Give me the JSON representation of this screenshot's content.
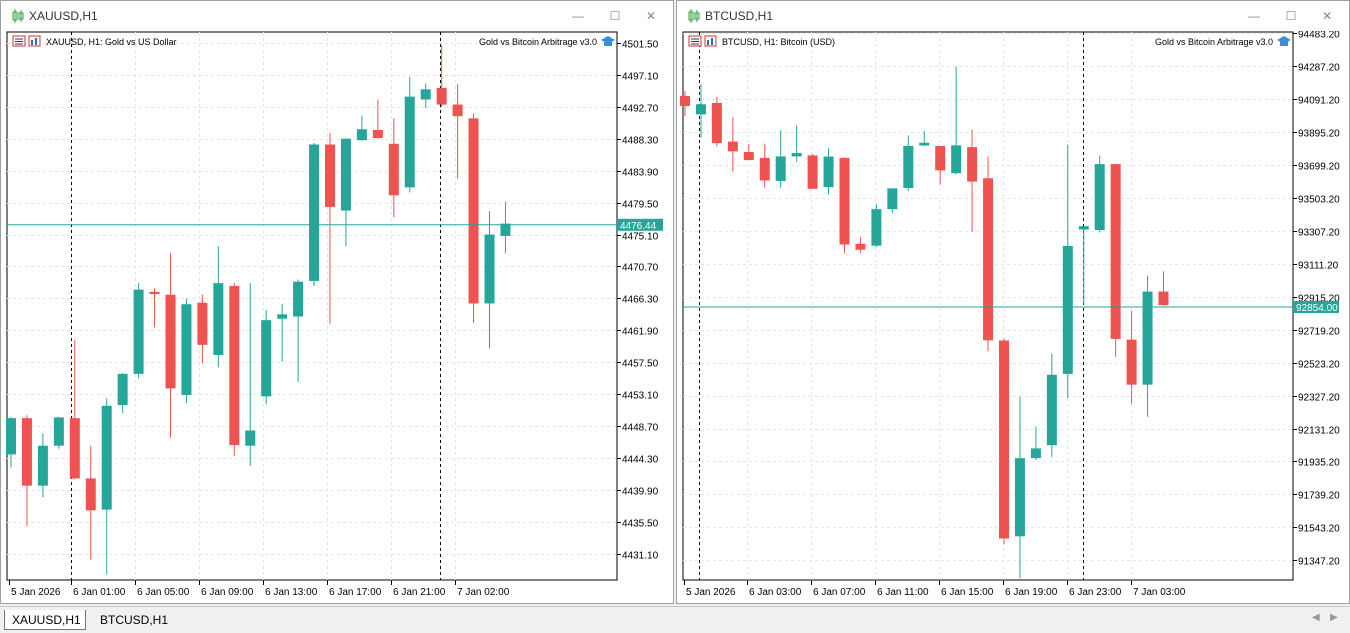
{
  "tabs": [
    {
      "label": "XAUUSD,H1",
      "active": true
    },
    {
      "label": "BTCUSD,H1",
      "active": false
    }
  ],
  "charts": [
    {
      "window_title": "XAUUSD,H1",
      "symbol_info": "XAUUSD, H1:  Gold vs US Dollar",
      "indicator": "Gold vs Bitcoin Arbitrage v3.0",
      "current_price": "4476.44",
      "price_labels": [
        "4501.50",
        "4497.10",
        "4492.70",
        "4488.30",
        "4483.90",
        "4479.50",
        "4475.10",
        "4470.70",
        "4466.30",
        "4461.90",
        "4457.50",
        "4453.10",
        "4448.70",
        "4444.30",
        "4439.90",
        "4435.50",
        "4431.10"
      ],
      "time_labels": [
        "5 Jan 2026",
        "6 Jan 01:00",
        "6 Jan 05:00",
        "6 Jan 09:00",
        "6 Jan 13:00",
        "6 Jan 17:00",
        "6 Jan 21:00",
        "7 Jan 02:00"
      ]
    },
    {
      "window_title": "BTCUSD,H1",
      "symbol_info": "BTCUSD, H1:  Bitcoin (USD)",
      "indicator": "Gold vs Bitcoin Arbitrage v3.0",
      "current_price": "92854.00",
      "price_labels": [
        "94483.20",
        "94287.20",
        "94091.20",
        "93895.20",
        "93699.20",
        "93503.20",
        "93307.20",
        "93111.20",
        "92915.20",
        "92719.20",
        "92523.20",
        "92327.20",
        "92131.20",
        "91935.20",
        "91739.20",
        "91543.20",
        "91347.20"
      ],
      "time_labels": [
        "5 Jan 2026",
        "6 Jan 03:00",
        "6 Jan 07:00",
        "6 Jan 11:00",
        "6 Jan 15:00",
        "6 Jan 19:00",
        "6 Jan 23:00",
        "7 Jan 03:00"
      ]
    }
  ],
  "chart_data": [
    {
      "type": "candlestick",
      "symbol": "XAUUSD",
      "timeframe": "H1",
      "ylim": [
        4427.5,
        4503.0
      ],
      "current_price": 4476.44,
      "bull_color": "#26a69a",
      "bear_color": "#ef5350",
      "candles": [
        {
          "o": 4444.8,
          "h": 4450.0,
          "l": 4443.0,
          "c": 4449.8
        },
        {
          "o": 4449.8,
          "h": 4450.2,
          "l": 4434.9,
          "c": 4440.5
        },
        {
          "o": 4440.5,
          "h": 4447.7,
          "l": 4438.9,
          "c": 4446.0
        },
        {
          "o": 4446.0,
          "h": 4450.0,
          "l": 4445.6,
          "c": 4449.9
        },
        {
          "o": 4449.8,
          "h": 4460.6,
          "l": 4441.4,
          "c": 4441.5
        },
        {
          "o": 4441.5,
          "h": 4446.0,
          "l": 4430.3,
          "c": 4437.1
        },
        {
          "o": 4437.2,
          "h": 4452.5,
          "l": 4428.3,
          "c": 4451.5
        },
        {
          "o": 4451.6,
          "h": 4456.0,
          "l": 4450.5,
          "c": 4455.9
        },
        {
          "o": 4455.9,
          "h": 4468.4,
          "l": 4455.3,
          "c": 4467.5
        },
        {
          "o": 4467.2,
          "h": 4467.7,
          "l": 4462.3,
          "c": 4466.9
        },
        {
          "o": 4466.8,
          "h": 4472.5,
          "l": 4447.1,
          "c": 4453.9
        },
        {
          "o": 4453.0,
          "h": 4466.3,
          "l": 4451.9,
          "c": 4465.5
        },
        {
          "o": 4465.7,
          "h": 4466.8,
          "l": 4457.4,
          "c": 4459.9
        },
        {
          "o": 4458.5,
          "h": 4473.5,
          "l": 4456.8,
          "c": 4468.4
        },
        {
          "o": 4468.0,
          "h": 4468.4,
          "l": 4444.6,
          "c": 4446.1
        },
        {
          "o": 4446.0,
          "h": 4468.4,
          "l": 4443.2,
          "c": 4448.1
        },
        {
          "o": 4452.8,
          "h": 4464.7,
          "l": 4451.7,
          "c": 4463.3
        },
        {
          "o": 4463.5,
          "h": 4465.5,
          "l": 4457.6,
          "c": 4464.1
        },
        {
          "o": 4463.8,
          "h": 4468.9,
          "l": 4454.8,
          "c": 4468.6
        },
        {
          "o": 4468.7,
          "h": 4487.7,
          "l": 4468.0,
          "c": 4487.5
        },
        {
          "o": 4487.5,
          "h": 4489.1,
          "l": 4462.8,
          "c": 4478.9
        },
        {
          "o": 4478.4,
          "h": 4488.3,
          "l": 4473.5,
          "c": 4488.3
        },
        {
          "o": 4488.1,
          "h": 4491.5,
          "l": 4488.0,
          "c": 4489.6
        },
        {
          "o": 4489.5,
          "h": 4493.7,
          "l": 4488.3,
          "c": 4488.4
        },
        {
          "o": 4487.6,
          "h": 4491.1,
          "l": 4477.5,
          "c": 4480.5
        },
        {
          "o": 4481.6,
          "h": 4496.8,
          "l": 4480.9,
          "c": 4494.1
        },
        {
          "o": 4493.7,
          "h": 4495.9,
          "l": 4492.5,
          "c": 4495.1
        },
        {
          "o": 4495.3,
          "h": 4501.2,
          "l": 4492.7,
          "c": 4493.0
        },
        {
          "o": 4493.0,
          "h": 4495.8,
          "l": 4482.8,
          "c": 4491.4
        },
        {
          "o": 4491.1,
          "h": 4491.8,
          "l": 4462.9,
          "c": 4465.6
        },
        {
          "o": 4465.6,
          "h": 4478.3,
          "l": 4459.4,
          "c": 4475.1
        },
        {
          "o": 4474.9,
          "h": 4479.6,
          "l": 4472.5,
          "c": 4476.6
        }
      ]
    },
    {
      "type": "candlestick",
      "symbol": "BTCUSD",
      "timeframe": "H1",
      "ylim": [
        91230.0,
        94490.0
      ],
      "current_price": 92854.0,
      "bull_color": "#26a69a",
      "bear_color": "#ef5350",
      "candles": [
        {
          "o": 94110,
          "h": 94140,
          "l": 93990,
          "c": 94050
        },
        {
          "o": 94000,
          "h": 94180,
          "l": 93860,
          "c": 94060
        },
        {
          "o": 94068,
          "h": 94103,
          "l": 93809,
          "c": 93829
        },
        {
          "o": 93838,
          "h": 93983,
          "l": 93660,
          "c": 93780
        },
        {
          "o": 93776,
          "h": 93824,
          "l": 93732,
          "c": 93728
        },
        {
          "o": 93741,
          "h": 93826,
          "l": 93561,
          "c": 93607
        },
        {
          "o": 93604,
          "h": 93905,
          "l": 93563,
          "c": 93750
        },
        {
          "o": 93750,
          "h": 93934,
          "l": 93718,
          "c": 93770
        },
        {
          "o": 93756,
          "h": 93764,
          "l": 93562,
          "c": 93557
        },
        {
          "o": 93567,
          "h": 93799,
          "l": 93525,
          "c": 93749
        },
        {
          "o": 93741,
          "h": 93745,
          "l": 93173,
          "c": 93226
        },
        {
          "o": 93230,
          "h": 93270,
          "l": 93177,
          "c": 93195
        },
        {
          "o": 93219,
          "h": 93467,
          "l": 93210,
          "c": 93436
        },
        {
          "o": 93436,
          "h": 93555,
          "l": 93414,
          "c": 93560
        },
        {
          "o": 93562,
          "h": 93875,
          "l": 93543,
          "c": 93812
        },
        {
          "o": 93815,
          "h": 93902,
          "l": 93811,
          "c": 93831
        },
        {
          "o": 93812,
          "h": 93796,
          "l": 93583,
          "c": 93667
        },
        {
          "o": 93650,
          "h": 94285,
          "l": 93642,
          "c": 93816
        },
        {
          "o": 93805,
          "h": 93908,
          "l": 93300,
          "c": 93600
        },
        {
          "o": 93620,
          "h": 93748,
          "l": 92591,
          "c": 92656
        },
        {
          "o": 92655,
          "h": 92667,
          "l": 91443,
          "c": 91477
        },
        {
          "o": 91490,
          "h": 92320,
          "l": 91240,
          "c": 91955
        },
        {
          "o": 91955,
          "h": 92143,
          "l": 91942,
          "c": 92013
        },
        {
          "o": 92032,
          "h": 92575,
          "l": 91962,
          "c": 92451
        },
        {
          "o": 92456,
          "h": 93820,
          "l": 92313,
          "c": 93217
        },
        {
          "o": 93315,
          "h": 93329,
          "l": 92867,
          "c": 93335
        },
        {
          "o": 93312,
          "h": 93756,
          "l": 93297,
          "c": 93704
        },
        {
          "o": 93704,
          "h": 93706,
          "l": 92557,
          "c": 92664
        },
        {
          "o": 92660,
          "h": 92830,
          "l": 92276,
          "c": 92392
        },
        {
          "o": 92392,
          "h": 93040,
          "l": 92201,
          "c": 92946
        },
        {
          "o": 92946,
          "h": 93066,
          "l": 92862,
          "c": 92865
        }
      ]
    }
  ]
}
